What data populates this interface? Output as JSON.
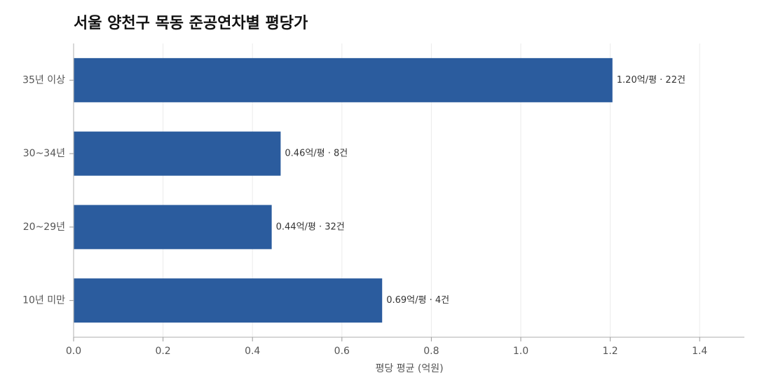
{
  "chart_data": {
    "type": "bar",
    "orientation": "horizontal",
    "title": "서울 양천구 목동 준공연차별 평당가",
    "xlabel": "평당 평균 (억원)",
    "ylabel": "",
    "xlim": [
      0,
      1.5
    ],
    "xticks": [
      "0.0",
      "0.2",
      "0.4",
      "0.6",
      "0.8",
      "1.0",
      "1.2",
      "1.4"
    ],
    "xtick_values": [
      0,
      0.2,
      0.4,
      0.6,
      0.8,
      1.0,
      1.2,
      1.4
    ],
    "grid": true,
    "bar_color": "#2b5c9e",
    "categories": [
      "35년 이상",
      "30~34년",
      "20~29년",
      "10년 미만"
    ],
    "values": [
      1.205,
      0.463,
      0.443,
      0.69
    ],
    "data_labels": [
      "1.20억/평 · 22건",
      "0.46억/평 · 8건",
      "0.44억/평 · 32건",
      "0.69억/평 · 4건"
    ]
  }
}
